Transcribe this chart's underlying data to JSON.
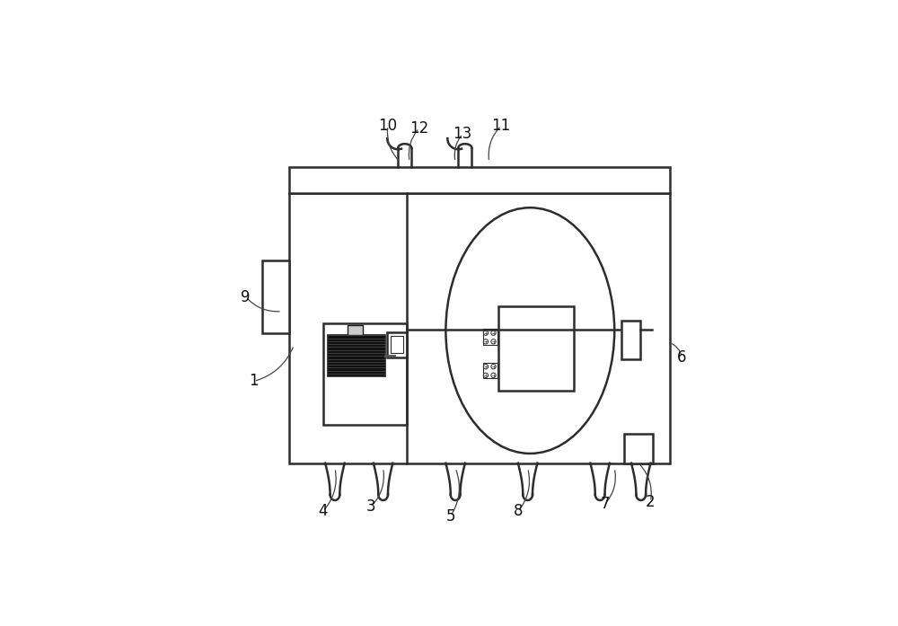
{
  "bg_color": "#ffffff",
  "line_color": "#2d2d2d",
  "fig_width": 10.0,
  "fig_height": 6.97,
  "lw_main": 1.8,
  "lw_thin": 1.0,
  "leaders": {
    "1": {
      "label": [
        0.072,
        0.365
      ],
      "point": [
        0.155,
        0.44
      ]
    },
    "2": {
      "label": [
        0.895,
        0.115
      ],
      "point": [
        0.87,
        0.195
      ]
    },
    "3": {
      "label": [
        0.315,
        0.105
      ],
      "point": [
        0.34,
        0.185
      ]
    },
    "4": {
      "label": [
        0.215,
        0.095
      ],
      "point": [
        0.24,
        0.185
      ]
    },
    "5": {
      "label": [
        0.48,
        0.085
      ],
      "point": [
        0.49,
        0.185
      ]
    },
    "6": {
      "label": [
        0.96,
        0.415
      ],
      "point": [
        0.935,
        0.445
      ]
    },
    "7": {
      "label": [
        0.8,
        0.11
      ],
      "point": [
        0.82,
        0.185
      ]
    },
    "8": {
      "label": [
        0.62,
        0.095
      ],
      "point": [
        0.64,
        0.185
      ]
    },
    "9": {
      "label": [
        0.055,
        0.54
      ],
      "point": [
        0.13,
        0.51
      ]
    },
    "10": {
      "label": [
        0.35,
        0.895
      ],
      "point": [
        0.375,
        0.82
      ]
    },
    "11": {
      "label": [
        0.585,
        0.895
      ],
      "point": [
        0.56,
        0.82
      ]
    },
    "12": {
      "label": [
        0.415,
        0.89
      ],
      "point": [
        0.395,
        0.82
      ]
    },
    "13": {
      "label": [
        0.505,
        0.878
      ],
      "point": [
        0.49,
        0.82
      ]
    }
  }
}
